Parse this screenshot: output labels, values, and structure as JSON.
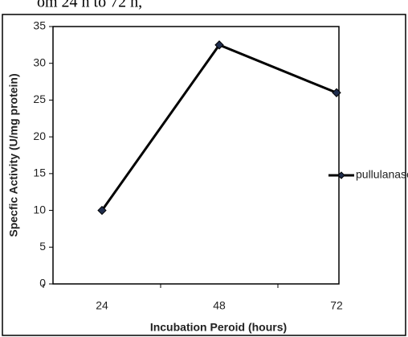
{
  "caption": "om 24 h to 72 h,",
  "chart_data": {
    "type": "line",
    "x_label": "Incubation  Peroid (hours)",
    "y_label": "Specfic Activity (U/mg protein)",
    "categories": [
      "24",
      "48",
      "72"
    ],
    "series": [
      {
        "name": "pullulanase",
        "color": "#000000",
        "values": [
          10,
          32.5,
          26
        ]
      }
    ],
    "ylim": [
      0,
      35
    ],
    "yticks": [
      0,
      5,
      10,
      15,
      20,
      25,
      30,
      35
    ],
    "legend": "right"
  }
}
